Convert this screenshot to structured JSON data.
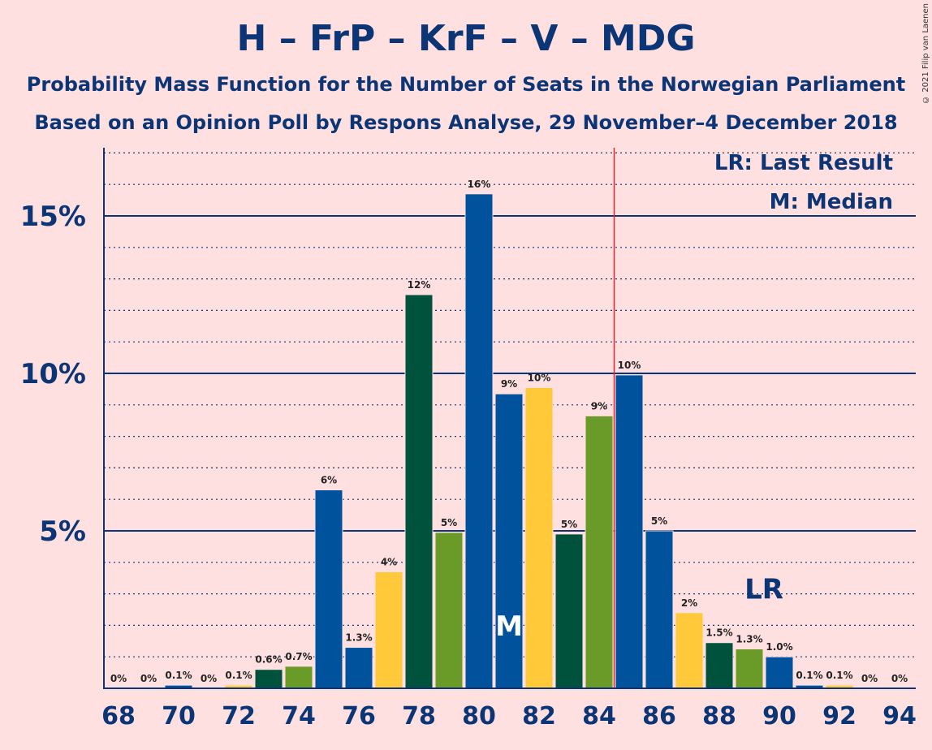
{
  "chart_data": {
    "type": "bar",
    "title": "H – FrP – KrF – V – MDG",
    "subtitle_lines": [
      "Probability Mass Function for the Number of Seats in the Norwegian Parliament",
      "Based on an Opinion Poll by Respons Analyse, 29 November–4 December 2018"
    ],
    "copyright": "© 2021 Filip van Laenen",
    "x": [
      68,
      69,
      70,
      71,
      72,
      73,
      74,
      75,
      76,
      77,
      78,
      79,
      80,
      81,
      82,
      83,
      84,
      85,
      86,
      87,
      88,
      89,
      90,
      91,
      92,
      93,
      94
    ],
    "values": [
      0,
      0,
      0.1,
      0,
      0.1,
      0.6,
      0.7,
      6.3,
      1.3,
      3.7,
      12.5,
      4.95,
      15.7,
      9.35,
      9.55,
      4.9,
      8.65,
      9.95,
      5.0,
      2.4,
      1.45,
      1.25,
      1.0,
      0.1,
      0.1,
      0,
      0
    ],
    "labels": [
      "0%",
      "0%",
      "0.1%",
      "0%",
      "0.1%",
      "0.6%",
      "0.7%",
      "6%",
      "1.3%",
      "4%",
      "12%",
      "5%",
      "16%",
      "9%",
      "10%",
      "5%",
      "9%",
      "10%",
      "5%",
      "2%",
      "1.5%",
      "1.3%",
      "1.0%",
      "0.1%",
      "0.1%",
      "0%",
      "0%"
    ],
    "bar_colors": [
      "#00529c",
      "#00529c",
      "#00529c",
      "#00529c",
      "#ffc93a",
      "#01523d",
      "#6a9a28",
      "#00529c",
      "#00529c",
      "#ffc93a",
      "#01523d",
      "#6a9a28",
      "#00529c",
      "#00529c",
      "#ffc93a",
      "#01523d",
      "#6a9a28",
      "#00529c",
      "#00529c",
      "#ffc93a",
      "#01523d",
      "#6a9a28",
      "#00529c",
      "#00529c",
      "#ffc93a",
      "#01523d",
      "#6a9a28"
    ],
    "x_tick_labels": [
      "68",
      "70",
      "72",
      "74",
      "76",
      "78",
      "80",
      "82",
      "84",
      "86",
      "88",
      "90",
      "92",
      "94"
    ],
    "y_ticks": [
      {
        "value": 5,
        "label": "5%"
      },
      {
        "value": 10,
        "label": "10%"
      },
      {
        "value": 15,
        "label": "15%"
      }
    ],
    "ylim": [
      0,
      17
    ],
    "minor_grid_step": 1,
    "median": {
      "seat": 81,
      "label": "M"
    },
    "last_result": {
      "seat": 84.5,
      "label_seat": 89,
      "label": "LR"
    },
    "legend": [
      "LR: Last Result",
      "M: Median"
    ],
    "colors": {
      "axis": "#0b3575",
      "lr_line": "#e8202a",
      "background": "#ffe0e0"
    }
  }
}
